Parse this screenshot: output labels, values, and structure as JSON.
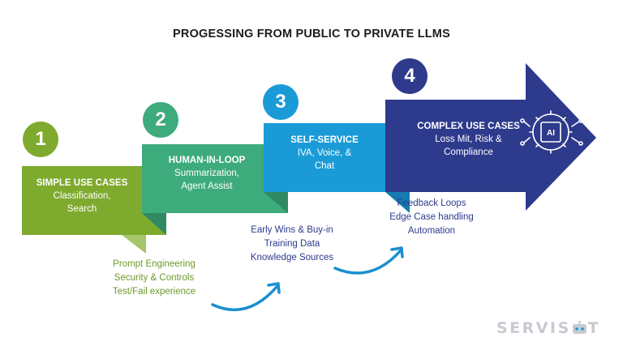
{
  "title": "PROGESSING FROM PUBLIC TO PRIVATE LLMS",
  "colors": {
    "step1": "#7eaa2e",
    "step2": "#3dab7c",
    "step3": "#1a9bd7",
    "step4": "#2e3a8c",
    "note_green": "#6e9a2a",
    "note_navy": "#2e3a8c",
    "curve_arrow": "#1a8fd0"
  },
  "steps": [
    {
      "number": "1",
      "heading": "SIMPLE USE CASES",
      "lines": [
        "Classification,",
        "Search"
      ]
    },
    {
      "number": "2",
      "heading": "HUMAN-IN-LOOP",
      "lines": [
        "Summarization,",
        "Agent Assist"
      ]
    },
    {
      "number": "3",
      "heading": "SELF-SERVICE",
      "lines": [
        "IVA, Voice, &",
        "Chat"
      ]
    },
    {
      "number": "4",
      "heading": "COMPLEX USE CASES",
      "lines": [
        "Loss Mit, Risk &",
        "Compliance"
      ],
      "icon": "ai-chip-icon",
      "icon_label": "AI"
    }
  ],
  "notes": {
    "stage1": [
      "Prompt Engineering",
      "Security & Controls",
      "Test/Fail experience"
    ],
    "stage2": [
      "Early Wins & Buy-in",
      "Training Data",
      "Knowledge Sources"
    ],
    "stage3": [
      "Feedback Loops",
      "Edge Case handling",
      "Automation"
    ]
  },
  "logo": {
    "text_before": "SERVIS",
    "text_after": "T",
    "icon": "robot-head-icon"
  }
}
